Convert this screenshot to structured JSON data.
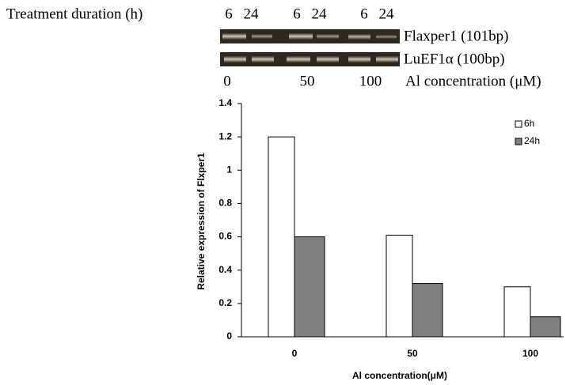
{
  "gel": {
    "duration_title": "Treatment duration (h)",
    "durations": [
      "6",
      "24",
      "6",
      "24",
      "6",
      "24"
    ],
    "bands": [
      "Flaxper1 (101bp)",
      "LuEF1α (100bp)"
    ],
    "concentrations": [
      "0",
      "50",
      "100"
    ],
    "concentration_title": "Al concentration (μM)"
  },
  "chart_data": {
    "type": "bar",
    "x_label": "Al concentration(μM)",
    "y_label": "Relative expression of Flxper1",
    "categories": [
      "0",
      "50",
      "100"
    ],
    "series": [
      {
        "name": "6h",
        "color": "#ffffff",
        "values": [
          1.2,
          0.61,
          0.3
        ]
      },
      {
        "name": "24h",
        "color": "#808080",
        "values": [
          0.6,
          0.32,
          0.12
        ]
      }
    ],
    "ylim": [
      0,
      1.4
    ],
    "yticks": [
      0,
      0.2,
      0.4,
      0.6,
      0.8,
      1,
      1.2,
      1.4
    ],
    "grid": false,
    "legend": "top-right"
  }
}
